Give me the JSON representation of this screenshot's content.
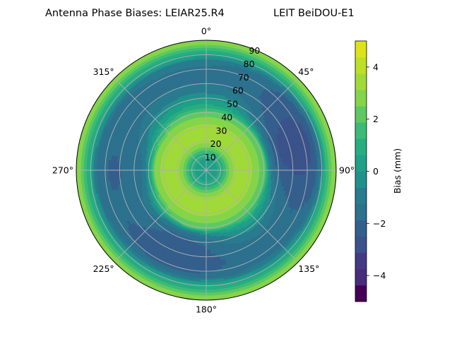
{
  "chart_data": {
    "type": "polar-contour",
    "title_left": "Antenna Phase Biases: LEIAR25.R4",
    "title_right": "LEIT BeiDOU-E1",
    "theta_zero": "top",
    "theta_direction": "clockwise",
    "theta_ticks": [
      "0°",
      "45°",
      "90°",
      "135°",
      "180°",
      "225°",
      "270°",
      "315°"
    ],
    "theta_tick_values": [
      0,
      45,
      90,
      135,
      180,
      225,
      270,
      315
    ],
    "r_ticks": [
      "10",
      "20",
      "30",
      "40",
      "50",
      "60",
      "70",
      "80",
      "90"
    ],
    "r_tick_values": [
      10,
      20,
      30,
      40,
      50,
      60,
      70,
      80,
      90
    ],
    "rlim": [
      0,
      90
    ],
    "grid": true,
    "radial_bias_profile_mm": {
      "radius": [
        0,
        5,
        10,
        15,
        20,
        25,
        30,
        35,
        40,
        45,
        50,
        55,
        60,
        65,
        70,
        75,
        80,
        85,
        90
      ],
      "bias": [
        0.0,
        0.3,
        0.8,
        2.2,
        3.3,
        3.4,
        3.3,
        2.8,
        2.2,
        0.8,
        0.0,
        -0.8,
        -1.2,
        -1.4,
        -1.3,
        -1.1,
        0.5,
        1.8,
        3.2
      ]
    },
    "azimuthal_bias_features": [
      {
        "azimuth_deg": 75,
        "radius_range": [
          45,
          78
        ],
        "bias_mm": -3.0
      },
      {
        "azimuth_deg": 200,
        "radius_range": [
          45,
          72
        ],
        "bias_mm": -2.5
      },
      {
        "azimuth_deg": 270,
        "radius_range": [
          40,
          75
        ],
        "bias_mm": -2.0
      }
    ],
    "levels": [
      -5,
      -4.375,
      -3.75,
      -3.125,
      -2.5,
      -1.875,
      -1.25,
      -0.625,
      0,
      0.625,
      1.25,
      1.875,
      2.5,
      3.125,
      3.75,
      4.375,
      5
    ],
    "colors": [
      "#440154",
      "#482878",
      "#3e4989",
      "#31688e",
      "#26828e",
      "#1f9e89",
      "#35b779",
      "#6ece58",
      "#b5de2b",
      "#fde725"
    ],
    "colorbar": {
      "label": "Bias (mm)",
      "ticks": [
        "−4",
        "−2",
        "0",
        "2",
        "4"
      ],
      "tick_values": [
        -4,
        -2,
        0,
        2,
        4
      ],
      "range": [
        -5,
        5
      ],
      "bands": [
        {
          "from": -5,
          "to": -4.375,
          "color": "#440154"
        },
        {
          "from": -4.375,
          "to": -3.75,
          "color": "#472d7b"
        },
        {
          "from": -3.75,
          "to": -3.125,
          "color": "#443a83"
        },
        {
          "from": -3.125,
          "to": -2.5,
          "color": "#3b528b"
        },
        {
          "from": -2.5,
          "to": -1.875,
          "color": "#345f8d"
        },
        {
          "from": -1.875,
          "to": -1.25,
          "color": "#2c718e"
        },
        {
          "from": -1.25,
          "to": -0.625,
          "color": "#297b8e"
        },
        {
          "from": -0.625,
          "to": 0,
          "color": "#21918c"
        },
        {
          "from": 0,
          "to": 0.625,
          "color": "#1fa088"
        },
        {
          "from": 0.625,
          "to": 1.25,
          "color": "#27ad81"
        },
        {
          "from": 1.25,
          "to": 1.875,
          "color": "#3bbb75"
        },
        {
          "from": 1.875,
          "to": 2.5,
          "color": "#5ec962"
        },
        {
          "from": 2.5,
          "to": 3.125,
          "color": "#85d44a"
        },
        {
          "from": 3.125,
          "to": 3.75,
          "color": "#a0da39"
        },
        {
          "from": 3.75,
          "to": 4.375,
          "color": "#bddf26"
        },
        {
          "from": 4.375,
          "to": 5,
          "color": "#dde318"
        }
      ]
    }
  }
}
